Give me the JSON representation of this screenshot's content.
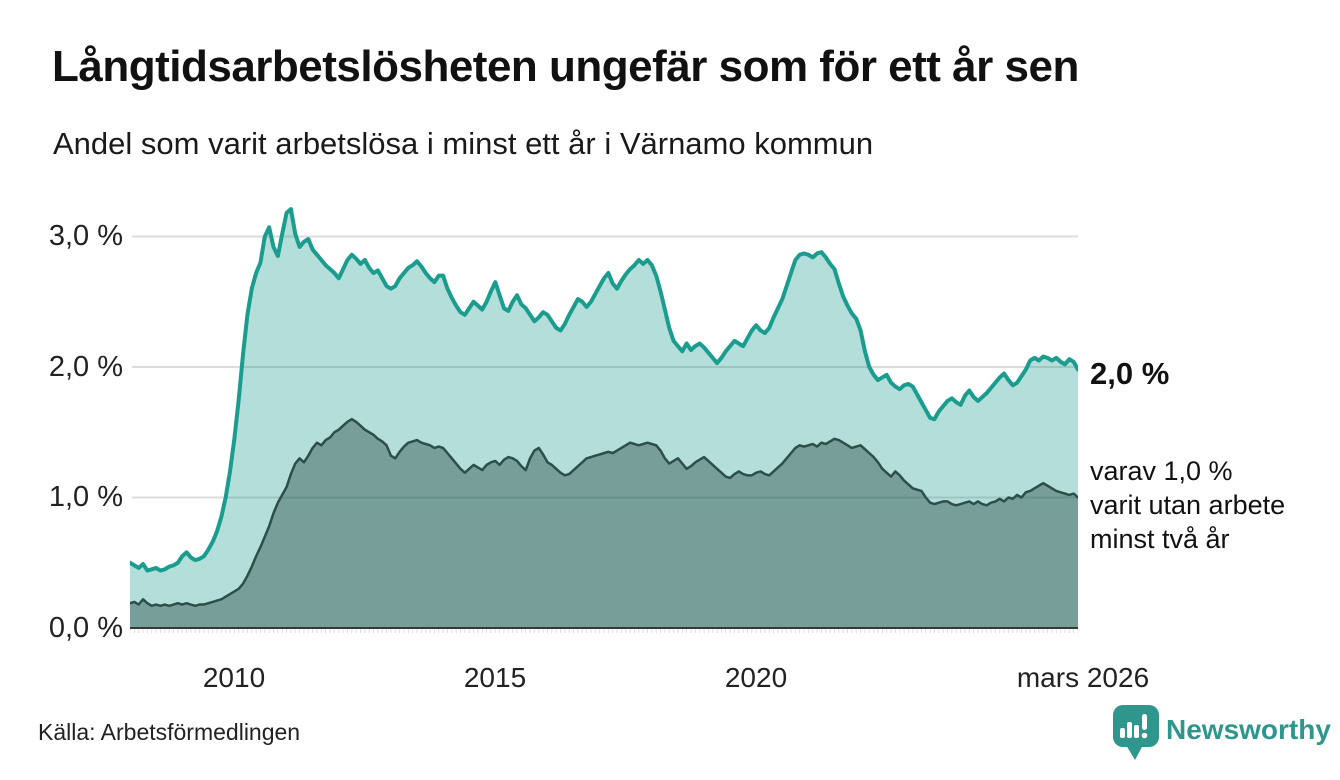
{
  "header": {
    "title": "Långtidsarbetslösheten ungefär som för ett år sen",
    "subtitle": "Andel som varit arbetslösa i minst ett år i Värnamo kommun"
  },
  "chart_data": {
    "type": "area",
    "title": "Långtidsarbetslösheten ungefär som för ett år sen",
    "subtitle": "Andel som varit arbetslösa i minst ett år i Värnamo kommun",
    "unit": "%",
    "frequency": "monthly",
    "period_start": "2008-01",
    "period_end": "2026-03",
    "ylim": [
      0,
      3.3
    ],
    "grid": true,
    "y_tick_values": [
      3,
      2,
      1,
      0
    ],
    "y_tick_labels": [
      "3,0 %",
      "2,0 %",
      "1,0 %",
      "0,0 %"
    ],
    "x_tick_labels": [
      "2010",
      "2015",
      "2020",
      "mars 2026"
    ],
    "x_tick_years": [
      2010,
      2015,
      2020,
      2026.17
    ],
    "end_label": "2,0 %",
    "end_note": [
      "varav 1,0 %",
      "varit utan arbete",
      "minst två år"
    ],
    "series": [
      {
        "name": "Arbetslösa minst ett år",
        "end_value": 2.0,
        "stroke": "#1a9c8e",
        "fill": "rgba(26,156,142,0.33)",
        "stroke_width": 4,
        "values": [
          0.5,
          0.48,
          0.46,
          0.49,
          0.44,
          0.45,
          0.46,
          0.44,
          0.45,
          0.47,
          0.48,
          0.5,
          0.55,
          0.58,
          0.54,
          0.52,
          0.53,
          0.55,
          0.6,
          0.66,
          0.74,
          0.85,
          1.0,
          1.2,
          1.45,
          1.75,
          2.1,
          2.4,
          2.6,
          2.72,
          2.8,
          3.0,
          3.07,
          2.92,
          2.85,
          3.02,
          3.18,
          3.21,
          3.02,
          2.92,
          2.96,
          2.98,
          2.9,
          2.86,
          2.82,
          2.78,
          2.75,
          2.72,
          2.68,
          2.75,
          2.82,
          2.86,
          2.83,
          2.79,
          2.82,
          2.76,
          2.72,
          2.74,
          2.68,
          2.62,
          2.6,
          2.62,
          2.68,
          2.72,
          2.76,
          2.78,
          2.81,
          2.77,
          2.72,
          2.68,
          2.65,
          2.7,
          2.7,
          2.6,
          2.53,
          2.47,
          2.42,
          2.4,
          2.45,
          2.5,
          2.47,
          2.44,
          2.5,
          2.58,
          2.65,
          2.55,
          2.45,
          2.43,
          2.5,
          2.55,
          2.48,
          2.45,
          2.4,
          2.35,
          2.38,
          2.42,
          2.4,
          2.35,
          2.3,
          2.28,
          2.33,
          2.4,
          2.46,
          2.52,
          2.5,
          2.46,
          2.5,
          2.56,
          2.62,
          2.68,
          2.72,
          2.64,
          2.6,
          2.66,
          2.71,
          2.75,
          2.78,
          2.82,
          2.79,
          2.82,
          2.78,
          2.7,
          2.58,
          2.44,
          2.3,
          2.2,
          2.16,
          2.12,
          2.18,
          2.13,
          2.16,
          2.18,
          2.15,
          2.11,
          2.07,
          2.03,
          2.07,
          2.12,
          2.16,
          2.2,
          2.18,
          2.16,
          2.22,
          2.28,
          2.32,
          2.28,
          2.26,
          2.3,
          2.38,
          2.45,
          2.52,
          2.62,
          2.72,
          2.82,
          2.86,
          2.87,
          2.86,
          2.84,
          2.87,
          2.88,
          2.84,
          2.79,
          2.75,
          2.64,
          2.54,
          2.47,
          2.41,
          2.37,
          2.28,
          2.12,
          2.0,
          1.94,
          1.9,
          1.92,
          1.94,
          1.88,
          1.85,
          1.83,
          1.86,
          1.87,
          1.85,
          1.79,
          1.73,
          1.67,
          1.61,
          1.6,
          1.66,
          1.7,
          1.74,
          1.76,
          1.73,
          1.71,
          1.78,
          1.82,
          1.77,
          1.74,
          1.77,
          1.8,
          1.84,
          1.88,
          1.92,
          1.95,
          1.9,
          1.86,
          1.88,
          1.93,
          1.98,
          2.05,
          2.07,
          2.05,
          2.08,
          2.07,
          2.05,
          2.07,
          2.04,
          2.02,
          2.06,
          2.04,
          1.98
        ]
      },
      {
        "name": "Varav utan arbete minst två år",
        "end_value": 1.0,
        "stroke": "#2e4f49",
        "fill": "rgba(45,79,73,0.45)",
        "stroke_width": 2.5,
        "values": [
          0.19,
          0.2,
          0.18,
          0.22,
          0.19,
          0.17,
          0.18,
          0.17,
          0.18,
          0.17,
          0.18,
          0.19,
          0.18,
          0.19,
          0.18,
          0.17,
          0.18,
          0.18,
          0.19,
          0.2,
          0.21,
          0.22,
          0.24,
          0.26,
          0.28,
          0.3,
          0.34,
          0.4,
          0.47,
          0.55,
          0.62,
          0.7,
          0.78,
          0.88,
          0.96,
          1.02,
          1.08,
          1.18,
          1.26,
          1.3,
          1.27,
          1.32,
          1.38,
          1.42,
          1.4,
          1.44,
          1.46,
          1.5,
          1.52,
          1.55,
          1.58,
          1.6,
          1.58,
          1.55,
          1.52,
          1.5,
          1.48,
          1.45,
          1.43,
          1.4,
          1.32,
          1.3,
          1.35,
          1.39,
          1.42,
          1.43,
          1.44,
          1.42,
          1.41,
          1.4,
          1.38,
          1.39,
          1.38,
          1.34,
          1.3,
          1.26,
          1.22,
          1.19,
          1.22,
          1.25,
          1.23,
          1.21,
          1.25,
          1.27,
          1.28,
          1.25,
          1.29,
          1.31,
          1.3,
          1.28,
          1.24,
          1.21,
          1.3,
          1.36,
          1.38,
          1.33,
          1.27,
          1.25,
          1.22,
          1.19,
          1.17,
          1.18,
          1.21,
          1.24,
          1.27,
          1.3,
          1.31,
          1.32,
          1.33,
          1.34,
          1.35,
          1.34,
          1.36,
          1.38,
          1.4,
          1.42,
          1.41,
          1.4,
          1.41,
          1.42,
          1.41,
          1.4,
          1.36,
          1.3,
          1.26,
          1.28,
          1.3,
          1.26,
          1.22,
          1.24,
          1.27,
          1.29,
          1.31,
          1.28,
          1.25,
          1.22,
          1.19,
          1.16,
          1.15,
          1.18,
          1.2,
          1.18,
          1.17,
          1.17,
          1.19,
          1.2,
          1.18,
          1.17,
          1.2,
          1.23,
          1.26,
          1.3,
          1.34,
          1.38,
          1.4,
          1.39,
          1.4,
          1.41,
          1.39,
          1.42,
          1.41,
          1.43,
          1.45,
          1.44,
          1.42,
          1.4,
          1.38,
          1.39,
          1.4,
          1.37,
          1.34,
          1.31,
          1.27,
          1.22,
          1.19,
          1.16,
          1.2,
          1.17,
          1.13,
          1.1,
          1.07,
          1.06,
          1.05,
          1.0,
          0.96,
          0.95,
          0.96,
          0.97,
          0.97,
          0.95,
          0.94,
          0.95,
          0.96,
          0.97,
          0.95,
          0.97,
          0.95,
          0.94,
          0.96,
          0.97,
          0.99,
          0.97,
          1.0,
          0.99,
          1.02,
          1.0,
          1.04,
          1.05,
          1.07,
          1.09,
          1.11,
          1.09,
          1.07,
          1.05,
          1.04,
          1.03,
          1.02,
          1.03,
          1.0
        ]
      }
    ],
    "gridline_color": "#dcdcdc",
    "baseline_color": "#333a38"
  },
  "footer": {
    "source": "Källa: Arbetsförmedlingen",
    "brand": "Newsworthy"
  },
  "colors": {
    "accent_teal": "#1a9c8e",
    "dark_series": "#2e4f49",
    "brand_teal": "#2e968c",
    "text": "#1a1a1a"
  }
}
